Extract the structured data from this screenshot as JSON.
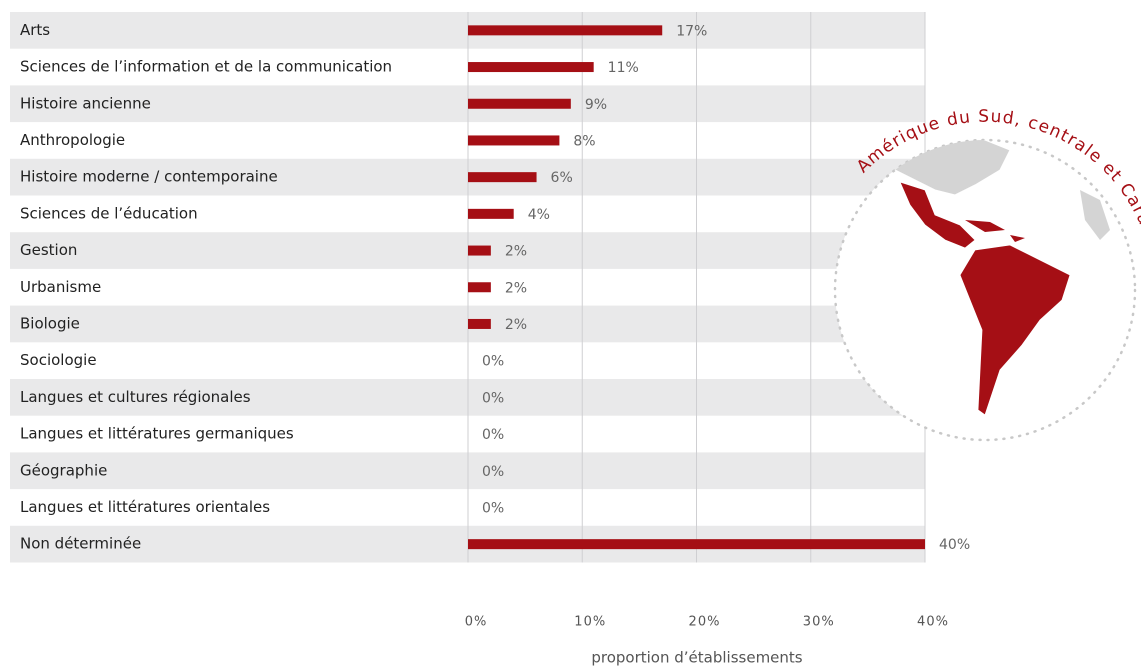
{
  "chart_data": {
    "type": "barh",
    "categories": [
      "Arts",
      "Sciences de l’information et de la communication",
      "Histoire ancienne",
      "Anthropologie",
      "Histoire moderne / contemporaine",
      "Sciences de l’éducation",
      "Gestion",
      "Urbanisme",
      "Biologie",
      "Sociologie",
      "Langues et cultures régionales",
      "Langues et littératures germaniques",
      "Géographie",
      "Langues et littératures orientales",
      "Non déterminée"
    ],
    "values": [
      17,
      11,
      9,
      8,
      6,
      4,
      2,
      2,
      2,
      0,
      0,
      0,
      0,
      0,
      40
    ],
    "value_labels": [
      "17%",
      "11%",
      "9%",
      "8%",
      "6%",
      "4%",
      "2%",
      "2%",
      "2%",
      "0%",
      "0%",
      "0%",
      "0%",
      "0%",
      "40%"
    ],
    "color": "#a50f15",
    "xlim": [
      0,
      40
    ],
    "xticks": [
      {
        "value": 0,
        "label": "0%"
      },
      {
        "value": 10,
        "label": "10%"
      },
      {
        "value": 20,
        "label": "20%"
      },
      {
        "value": 30,
        "label": "30%"
      },
      {
        "value": 40,
        "label": "40%"
      }
    ],
    "xlabel": "proportion d’établissements",
    "grid": true,
    "annotation": "Amérique du Sud, centrale et Caraïbes"
  }
}
